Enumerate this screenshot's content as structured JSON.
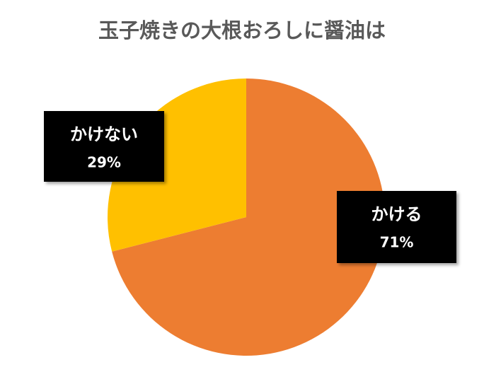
{
  "chart_data": {
    "type": "pie",
    "title": "玉子焼きの大根おろしに醤油は",
    "categories": [
      "かける",
      "かけない"
    ],
    "values": [
      71,
      29
    ],
    "value_labels": [
      "71%",
      "29%"
    ],
    "colors": [
      "#ED7D31",
      "#FFC000"
    ]
  }
}
